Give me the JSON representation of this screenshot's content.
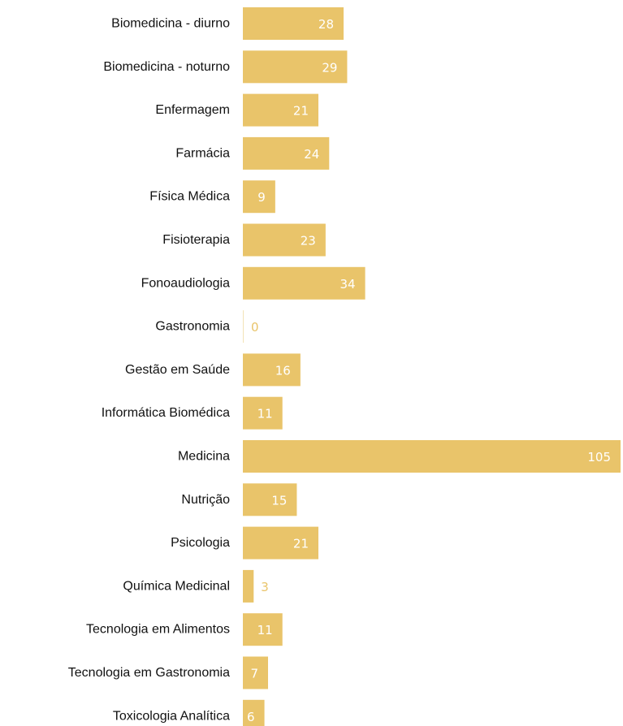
{
  "chart_data": {
    "type": "bar",
    "orientation": "horizontal",
    "categories": [
      "Biomedicina - diurno",
      "Biomedicina - noturno",
      "Enfermagem",
      "Farmácia",
      "Física Médica",
      "Fisioterapia",
      "Fonoaudiologia",
      "Gastronomia",
      "Gestão em Saúde",
      "Informática Biomédica",
      "Medicina",
      "Nutrição",
      "Psicologia",
      "Química Medicinal",
      "Tecnologia em Alimentos",
      "Tecnologia em Gastronomia",
      "Toxicologia Analítica"
    ],
    "values": [
      28,
      29,
      21,
      24,
      9,
      23,
      34,
      0,
      16,
      11,
      105,
      15,
      21,
      3,
      11,
      7,
      6
    ],
    "title": "",
    "xlabel": "",
    "ylabel": "",
    "xlim": [
      0,
      105
    ],
    "grid": false,
    "legend": "none",
    "bar_color": "#E9C46A",
    "value_label_inside_color": "#FFFFFF",
    "value_label_outside_color": "#E9C46A",
    "category_label_color": "#111111"
  }
}
